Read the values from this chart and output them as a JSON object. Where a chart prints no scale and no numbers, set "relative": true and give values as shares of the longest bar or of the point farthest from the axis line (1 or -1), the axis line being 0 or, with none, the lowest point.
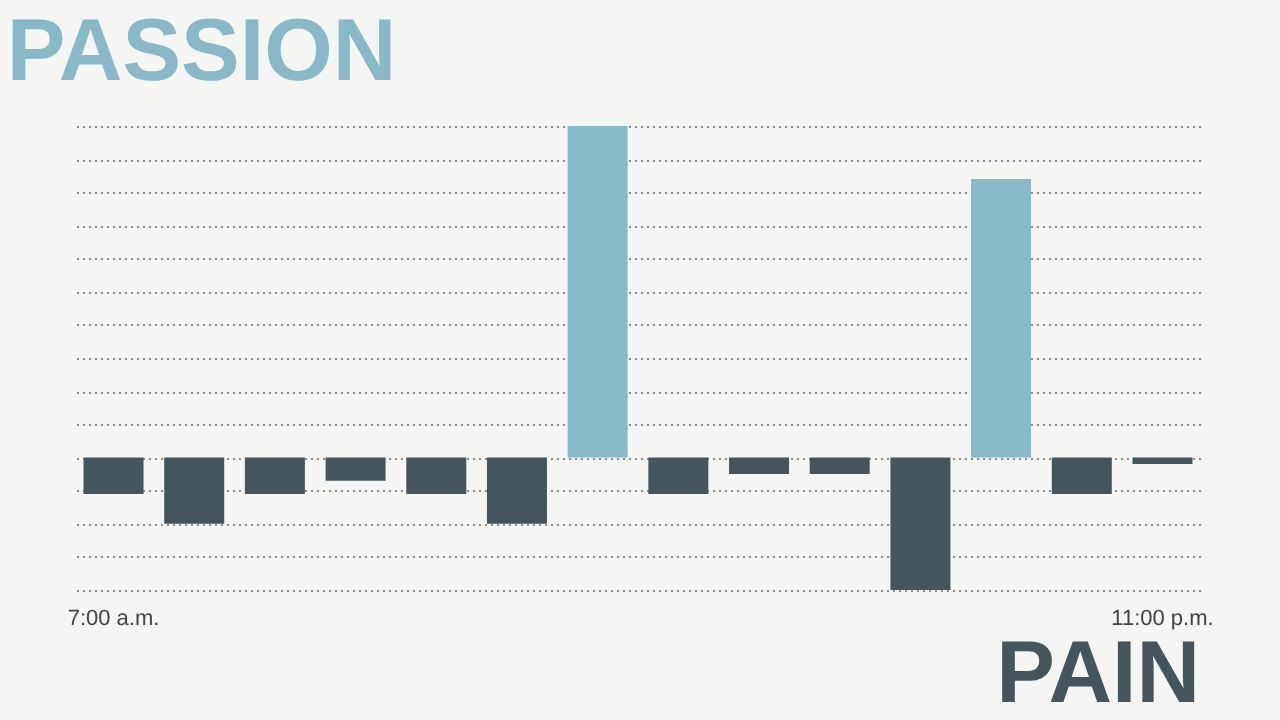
{
  "chart_data": {
    "type": "bar",
    "title": "PASSION",
    "annotations": [
      "PAIN"
    ],
    "relative": true,
    "grid": "y",
    "categories": [
      "7:00 a.m.",
      null,
      null,
      null,
      null,
      null,
      null,
      null,
      null,
      null,
      null,
      null,
      null,
      "11:00 p.m."
    ],
    "values": [
      -0.11,
      -0.2,
      -0.11,
      -0.07,
      -0.11,
      -0.2,
      1,
      -0.11,
      -0.05,
      -0.05,
      -0.4,
      0.84,
      -0.11,
      -0.02
    ],
    "colors": [
      "#45555e",
      "#45555e",
      "#45555e",
      "#45555e",
      "#45555e",
      "#45555e",
      "#87b9c9",
      "#45555e",
      "#45555e",
      "#45555e",
      "#45555e",
      "#87b9c9",
      "#45555e",
      "#45555e"
    ]
  }
}
